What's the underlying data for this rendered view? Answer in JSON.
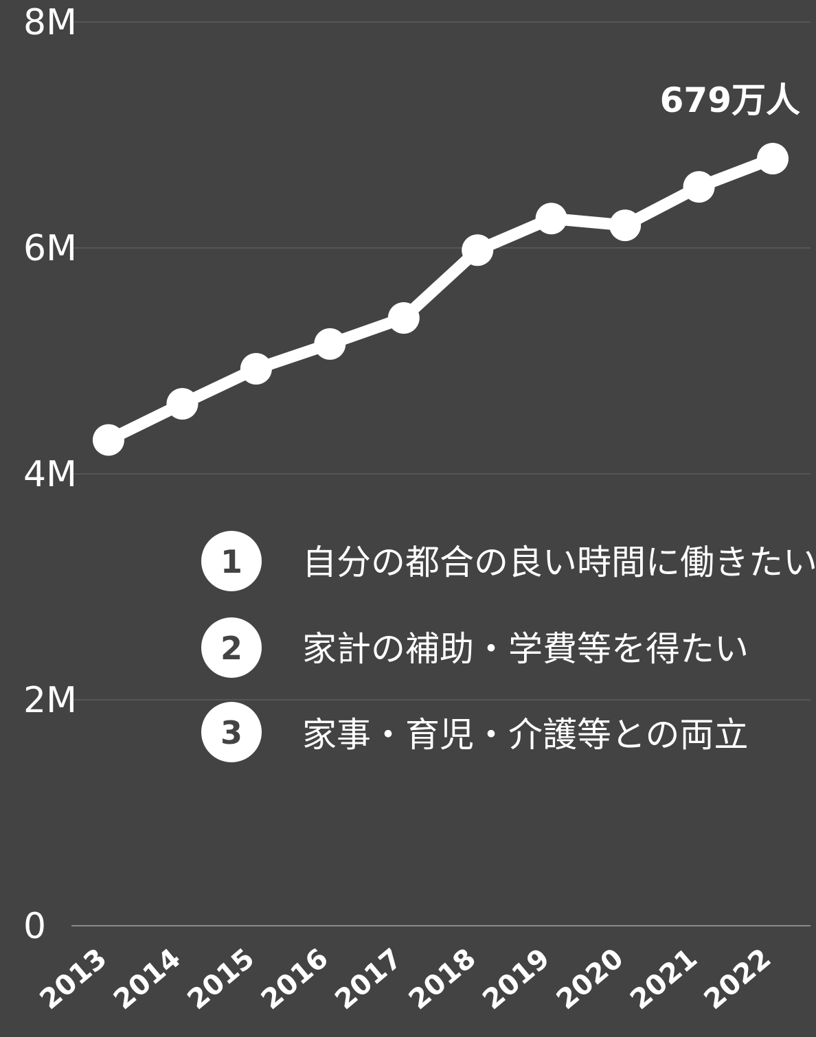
{
  "chart_data": {
    "type": "line",
    "x": [
      "2013",
      "2014",
      "2015",
      "2016",
      "2017",
      "2018",
      "2019",
      "2020",
      "2021",
      "2022"
    ],
    "series": [
      {
        "values": [
          4300000,
          4620000,
          4930000,
          5150000,
          5380000,
          5980000,
          6260000,
          6200000,
          6540000,
          6790000
        ]
      }
    ],
    "yticks": [
      "0",
      "2M",
      "4M",
      "6M",
      "8M"
    ],
    "ylim": [
      0,
      8000000
    ],
    "grid": true,
    "line_color": "#ffffff",
    "background": "#434343",
    "annotation": {
      "x": "2022",
      "text": "679万人"
    }
  },
  "reasons": [
    {
      "number": "1",
      "text": "自分の都合の良い時間に働きたい"
    },
    {
      "number": "2",
      "text": "家計の補助・学費等を得たい"
    },
    {
      "number": "3",
      "text": "家事・育児・介護等との両立"
    }
  ]
}
